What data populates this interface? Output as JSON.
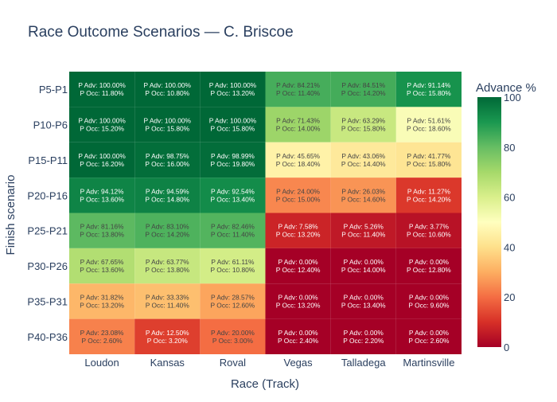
{
  "chart_data": {
    "type": "heatmap",
    "title": "Race Outcome Scenarios — C. Briscoe",
    "xlabel": "Race (Track)",
    "ylabel": "Finish scenario",
    "x": [
      "Loudon",
      "Kansas",
      "Roval",
      "Vegas",
      "Talladega",
      "Martinsville"
    ],
    "y": [
      "P5-P1",
      "P10-P6",
      "P15-P11",
      "P20-P16",
      "P25-P21",
      "P30-P26",
      "P35-P31",
      "P40-P36"
    ],
    "cell_prefix_adv": "P Adv:",
    "cell_prefix_occ": "P Occ:",
    "advance_pct": [
      [
        100.0,
        100.0,
        100.0,
        84.21,
        84.51,
        91.14
      ],
      [
        100.0,
        100.0,
        100.0,
        71.43,
        63.29,
        51.61
      ],
      [
        100.0,
        98.75,
        98.99,
        45.65,
        43.06,
        41.77
      ],
      [
        94.12,
        94.59,
        92.54,
        24.0,
        26.03,
        11.27
      ],
      [
        81.16,
        83.1,
        82.46,
        7.58,
        5.26,
        3.77
      ],
      [
        67.65,
        63.77,
        61.11,
        0.0,
        0.0,
        0.0
      ],
      [
        31.82,
        33.33,
        28.57,
        0.0,
        0.0,
        0.0
      ],
      [
        23.08,
        12.5,
        20.0,
        0.0,
        0.0,
        0.0
      ]
    ],
    "occurrence_pct": [
      [
        11.8,
        10.8,
        13.2,
        11.4,
        14.2,
        15.8
      ],
      [
        15.2,
        15.8,
        15.8,
        14.0,
        15.8,
        18.6
      ],
      [
        16.2,
        16.0,
        19.8,
        18.4,
        14.4,
        15.8
      ],
      [
        13.6,
        14.8,
        13.4,
        15.0,
        14.6,
        14.2
      ],
      [
        13.8,
        14.2,
        11.4,
        13.2,
        11.4,
        10.6
      ],
      [
        13.6,
        13.8,
        10.8,
        12.4,
        14.0,
        12.8
      ],
      [
        13.2,
        11.4,
        12.6,
        13.2,
        13.4,
        9.6
      ],
      [
        2.6,
        3.2,
        3.0,
        2.4,
        2.2,
        2.6
      ]
    ],
    "colorbar": {
      "title": "Advance %",
      "range": [
        0,
        100
      ],
      "ticks": [
        "0",
        "20",
        "40",
        "60",
        "80",
        "100"
      ],
      "colorscale": "RdYlGn"
    },
    "colors": {
      "text": "#2a3f5f",
      "scale": [
        "#a50026",
        "#d73027",
        "#f46d43",
        "#fdae61",
        "#fee08b",
        "#ffffbf",
        "#d9ef8b",
        "#a6d96a",
        "#66bd63",
        "#1a9850",
        "#006837"
      ]
    }
  }
}
